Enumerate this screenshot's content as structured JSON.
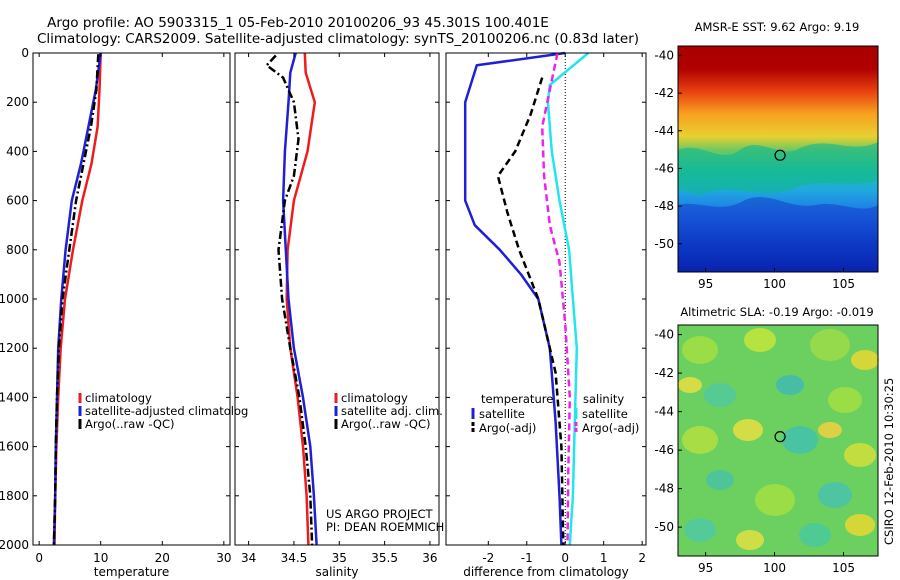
{
  "title_line1": "Argo profile: AO 5903315_1 05-Feb-2010 20100206_93 45.301S 100.401E",
  "title_line2": "Climatology: CARS2009. Satellite-adjusted climatology: synTS_20100206.nc (0.83d later)",
  "side_label": "CSIRO 12-Feb-2010 10:30:25",
  "project_label_1": "US ARGO PROJECT",
  "project_label_2": "PI: DEAN ROEMMICH",
  "colors": {
    "red": "#ee1c1c",
    "blue": "#1f1fd6",
    "black": "#000000",
    "cyan": "#22e6ee",
    "magenta": "#ee22ee"
  },
  "chart_data": [
    {
      "type": "line",
      "xlabel": "temperature",
      "ylabel": "",
      "xlim": [
        -1,
        31
      ],
      "ylim": [
        2000,
        0
      ],
      "xticks": [
        0,
        10,
        20,
        30
      ],
      "yticks": [
        0,
        200,
        400,
        600,
        800,
        1000,
        1200,
        1400,
        1600,
        1800,
        2000
      ],
      "legend": [
        "climatology",
        "satellite-adjusted climatolog",
        "Argo(..raw -QC)"
      ],
      "series": [
        {
          "name": "climatology",
          "color": "red",
          "dash": "solid",
          "points": [
            [
              10,
              0
            ],
            [
              9.8,
              150
            ],
            [
              9.5,
              300
            ],
            [
              8.5,
              450
            ],
            [
              7,
              600
            ],
            [
              5.5,
              800
            ],
            [
              4.2,
              1000
            ],
            [
              3.5,
              1200
            ],
            [
              3.1,
              1400
            ],
            [
              2.8,
              1600
            ],
            [
              2.6,
              1800
            ],
            [
              2.5,
              2000
            ]
          ]
        },
        {
          "name": "satellite-adjusted climatolog",
          "color": "blue",
          "dash": "solid",
          "points": [
            [
              10,
              0
            ],
            [
              9.2,
              150
            ],
            [
              8,
              300
            ],
            [
              6.8,
              450
            ],
            [
              5.3,
              600
            ],
            [
              4.3,
              800
            ],
            [
              3.6,
              1000
            ],
            [
              3.1,
              1200
            ],
            [
              2.9,
              1400
            ],
            [
              2.7,
              1600
            ],
            [
              2.6,
              1800
            ],
            [
              2.4,
              2000
            ]
          ]
        },
        {
          "name": "Argo(..raw -QC)",
          "color": "black",
          "dash": "dashdot",
          "points": [
            [
              9.6,
              5
            ],
            [
              9.3,
              150
            ],
            [
              8.4,
              300
            ],
            [
              7.2,
              450
            ],
            [
              6,
              600
            ],
            [
              4.9,
              800
            ],
            [
              3.8,
              1000
            ],
            [
              3.2,
              1200
            ],
            [
              2.9,
              1400
            ],
            [
              2.7,
              1600
            ],
            [
              2.6,
              1800
            ],
            [
              2.4,
              2000
            ]
          ]
        }
      ]
    },
    {
      "type": "line",
      "xlabel": "salinity",
      "ylabel": "",
      "xlim": [
        33.85,
        36.1
      ],
      "ylim": [
        2000,
        0
      ],
      "xticks": [
        34,
        34.5,
        35,
        35.5,
        36
      ],
      "xticklabels": [
        "34",
        "34.5",
        "35",
        "35.5",
        "36"
      ],
      "legend": [
        "climatology",
        "satellite adj. clim.",
        "Argo(..raw -QC)"
      ],
      "series": [
        {
          "name": "climatology",
          "color": "red",
          "dash": "solid",
          "points": [
            [
              34.62,
              0
            ],
            [
              34.63,
              80
            ],
            [
              34.73,
              200
            ],
            [
              34.65,
              400
            ],
            [
              34.5,
              600
            ],
            [
              34.43,
              800
            ],
            [
              34.42,
              1000
            ],
            [
              34.46,
              1200
            ],
            [
              34.54,
              1400
            ],
            [
              34.6,
              1600
            ],
            [
              34.64,
              1800
            ],
            [
              34.66,
              2000
            ]
          ]
        },
        {
          "name": "satellite adj. clim.",
          "color": "blue",
          "dash": "solid",
          "points": [
            [
              34.52,
              0
            ],
            [
              34.46,
              80
            ],
            [
              34.44,
              200
            ],
            [
              34.4,
              400
            ],
            [
              34.38,
              600
            ],
            [
              34.41,
              800
            ],
            [
              34.44,
              1000
            ],
            [
              34.5,
              1200
            ],
            [
              34.6,
              1400
            ],
            [
              34.68,
              1600
            ],
            [
              34.72,
              1800
            ],
            [
              34.75,
              2000
            ]
          ]
        },
        {
          "name": "Argo(..raw -QC)",
          "color": "black",
          "dash": "dashdot",
          "points": [
            [
              34.3,
              10
            ],
            [
              34.2,
              50
            ],
            [
              34.38,
              100
            ],
            [
              34.5,
              200
            ],
            [
              34.55,
              350
            ],
            [
              34.5,
              500
            ],
            [
              34.4,
              600
            ],
            [
              34.33,
              800
            ],
            [
              34.37,
              1000
            ],
            [
              34.46,
              1200
            ],
            [
              34.56,
              1400
            ],
            [
              34.63,
              1600
            ],
            [
              34.68,
              1800
            ],
            [
              34.7,
              2000
            ]
          ]
        }
      ]
    },
    {
      "type": "line",
      "xlabel": "difference from climatology",
      "ylabel": "",
      "xlim": [
        -3.1,
        2.1
      ],
      "ylim": [
        2000,
        0
      ],
      "xticks": [
        -2,
        -1,
        0,
        1,
        2
      ],
      "legend_temperature_title": "temperature",
      "legend_salinity_title": "salinity",
      "legend": [
        "satellite",
        "Argo(-adj)",
        "satellite",
        "Argo(-adj)"
      ],
      "zero_line": 0,
      "series": [
        {
          "name": "temperature satellite",
          "color": "blue",
          "dash": "solid",
          "points": [
            [
              0,
              0
            ],
            [
              -2.3,
              50
            ],
            [
              -2.6,
              200
            ],
            [
              -2.6,
              400
            ],
            [
              -2.6,
              600
            ],
            [
              -2.35,
              700
            ],
            [
              -1.7,
              800
            ],
            [
              -1.15,
              900
            ],
            [
              -0.7,
              1000
            ],
            [
              -0.4,
              1200
            ],
            [
              -0.25,
              1500
            ],
            [
              -0.15,
              1800
            ],
            [
              -0.1,
              2000
            ]
          ]
        },
        {
          "name": "temperature Argo(-adj)",
          "color": "black",
          "dash": "dashed",
          "points": [
            [
              -0.6,
              100
            ],
            [
              -0.9,
              250
            ],
            [
              -1.3,
              400
            ],
            [
              -1.75,
              500
            ],
            [
              -1.5,
              650
            ],
            [
              -1.2,
              800
            ],
            [
              -0.7,
              1000
            ],
            [
              -0.25,
              1300
            ],
            [
              -0.1,
              1600
            ],
            [
              -0.05,
              2000
            ]
          ]
        },
        {
          "name": "salinity satellite",
          "color": "cyan",
          "dash": "solid",
          "points": [
            [
              0.6,
              0
            ],
            [
              -0.4,
              130
            ],
            [
              -0.45,
              200
            ],
            [
              -0.35,
              400
            ],
            [
              -0.15,
              600
            ],
            [
              0.1,
              800
            ],
            [
              0.2,
              1000
            ],
            [
              0.3,
              1200
            ],
            [
              0.25,
              1500
            ],
            [
              0.2,
              1800
            ],
            [
              0.12,
              2000
            ]
          ]
        },
        {
          "name": "salinity Argo(-adj)",
          "color": "magenta",
          "dash": "dashed",
          "points": [
            [
              -0.2,
              0
            ],
            [
              -0.4,
              150
            ],
            [
              -0.6,
              300
            ],
            [
              -0.55,
              500
            ],
            [
              -0.4,
              700
            ],
            [
              -0.15,
              850
            ],
            [
              0,
              1100
            ],
            [
              0.12,
              1400
            ],
            [
              0.08,
              1700
            ],
            [
              0.06,
              2000
            ]
          ]
        }
      ]
    },
    {
      "type": "heatmap",
      "title": "AMSR-E SST: 9.62 Argo: 9.19",
      "xlim": [
        93,
        107.5
      ],
      "ylim": [
        -51.5,
        -39.5
      ],
      "xticks": [
        95,
        100,
        105
      ],
      "yticks": [
        -40,
        -42,
        -44,
        -46,
        -48,
        -50
      ],
      "marker": [
        100.4,
        -45.3
      ]
    },
    {
      "type": "heatmap",
      "title": "Altimetric SLA: -0.19 Argo: -0.019",
      "xlim": [
        93,
        107.5
      ],
      "ylim": [
        -51.5,
        -39.5
      ],
      "xticks": [
        95,
        100,
        105
      ],
      "yticks": [
        -40,
        -42,
        -44,
        -46,
        -48,
        -50
      ],
      "marker": [
        100.4,
        -45.3
      ]
    }
  ]
}
